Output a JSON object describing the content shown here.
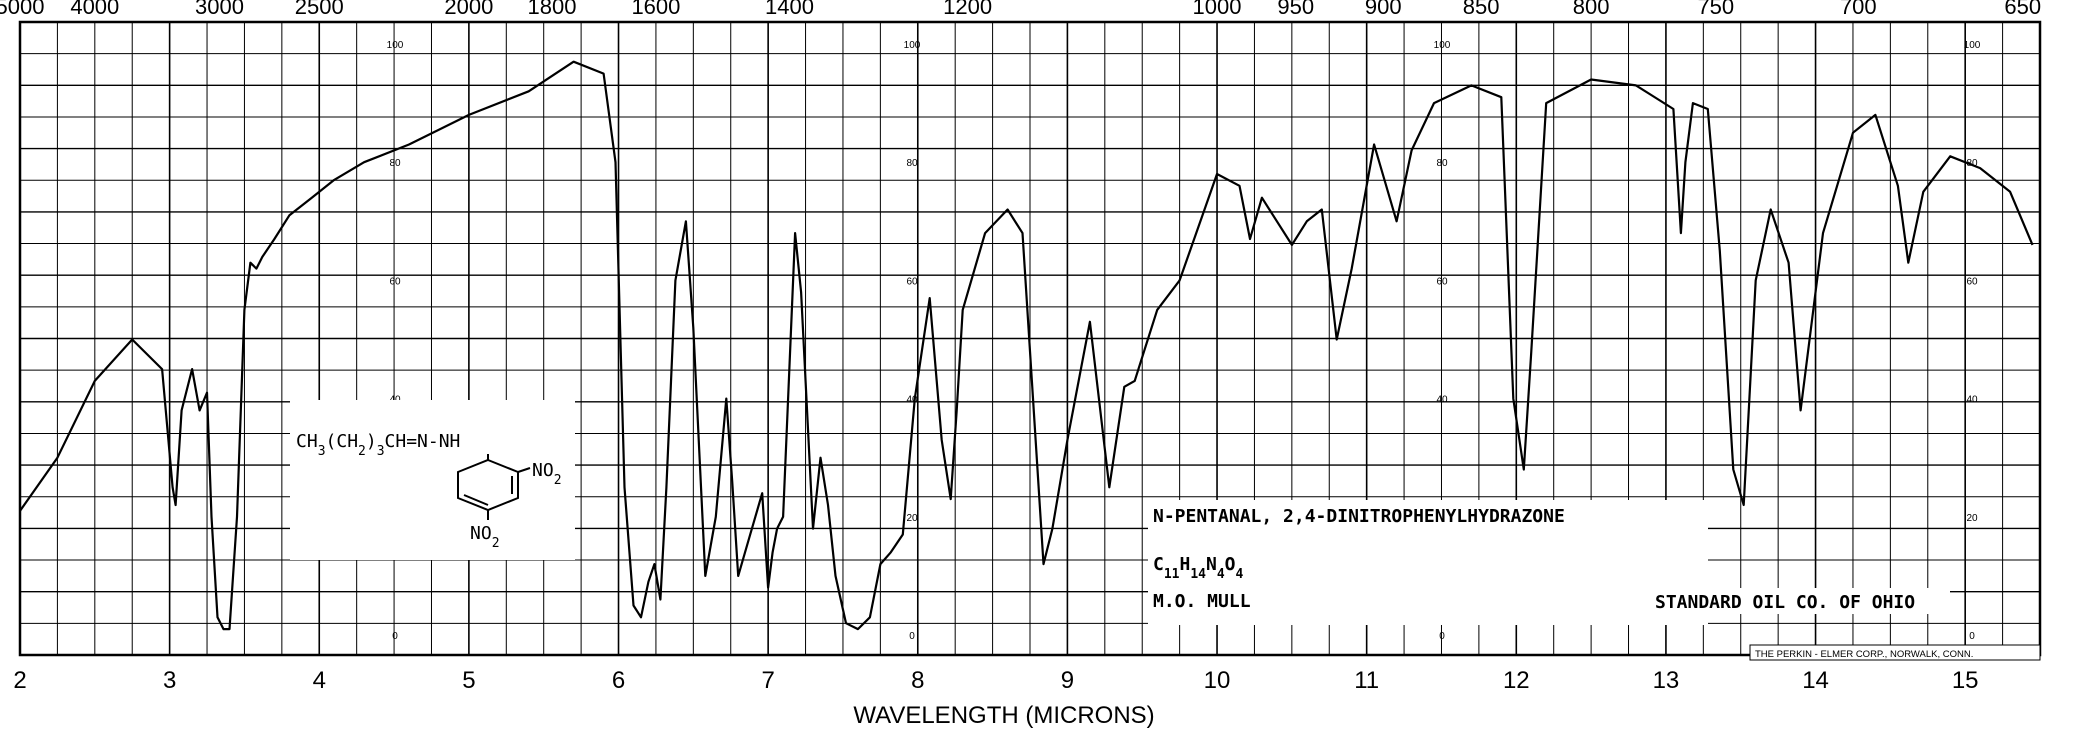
{
  "chart_data": {
    "type": "line",
    "title": "N-PENTANAL, 2,4-DINITROPHENYLHYDRAZONE",
    "xlabel": "WAVELENGTH (MICRONS)",
    "ylabel": "",
    "xlim": [
      2,
      15.5
    ],
    "ylim": [
      0,
      100
    ],
    "x_ticks": [
      "2",
      "3",
      "4",
      "5",
      "6",
      "7",
      "8",
      "9",
      "10",
      "11",
      "12",
      "13",
      "14",
      "15"
    ],
    "wavenumber_ticks": [
      "5000",
      "4000",
      "3000",
      "2500",
      "2000",
      "1800",
      "1600",
      "1400",
      "1200",
      "1000",
      "950",
      "900",
      "850",
      "800",
      "750",
      "700",
      "650"
    ],
    "y_ticks": [
      "0",
      "20",
      "40",
      "60",
      "80",
      "100"
    ],
    "grid": true,
    "series": [
      {
        "name": "",
        "x": [
          2.0,
          2.25,
          2.5,
          2.75,
          2.95,
          3.02,
          3.04,
          3.08,
          3.15,
          3.2,
          3.25,
          3.28,
          3.32,
          3.36,
          3.4,
          3.45,
          3.5,
          3.54,
          3.58,
          3.62,
          3.7,
          3.8,
          3.95,
          4.1,
          4.3,
          4.6,
          5.0,
          5.4,
          5.7,
          5.9,
          5.98,
          6.04,
          6.1,
          6.15,
          6.2,
          6.24,
          6.28,
          6.32,
          6.38,
          6.45,
          6.5,
          6.58,
          6.65,
          6.72,
          6.76,
          6.8,
          6.88,
          6.96,
          7.0,
          7.03,
          7.06,
          7.1,
          7.18,
          7.22,
          7.3,
          7.35,
          7.4,
          7.45,
          7.52,
          7.6,
          7.68,
          7.75,
          7.82,
          7.9,
          7.98,
          8.08,
          8.16,
          8.22,
          8.26,
          8.3,
          8.45,
          8.6,
          8.7,
          8.8,
          8.84,
          8.9,
          9.0,
          9.15,
          9.28,
          9.38,
          9.45,
          9.5,
          9.6,
          9.75,
          10.0,
          10.15,
          10.22,
          10.3,
          10.4,
          10.5,
          10.6,
          10.7,
          10.8,
          10.9,
          11.05,
          11.2,
          11.3,
          11.45,
          11.7,
          11.9,
          11.98,
          12.05,
          12.1,
          12.2,
          12.5,
          12.8,
          13.05,
          13.1,
          13.13,
          13.18,
          13.28,
          13.36,
          13.45,
          13.52,
          13.6,
          13.7,
          13.82,
          13.9,
          14.05,
          14.25,
          14.4,
          14.55,
          14.62,
          14.72,
          14.9,
          15.1,
          15.3,
          15.45
        ],
        "y": [
          21,
          30,
          43,
          50,
          45,
          25,
          22,
          38,
          45,
          38,
          41,
          20,
          3,
          1,
          1,
          20,
          55,
          63,
          62,
          64,
          67,
          71,
          74,
          77,
          80,
          83,
          88,
          92,
          97,
          95,
          80,
          25,
          5,
          3,
          9,
          12,
          6,
          25,
          60,
          70,
          52,
          10,
          20,
          40,
          26,
          10,
          17,
          24,
          8,
          14,
          18,
          20,
          68,
          58,
          18,
          30,
          22,
          10,
          2,
          1,
          3,
          12,
          14,
          17,
          40,
          57,
          33,
          23,
          38,
          55,
          68,
          72,
          68,
          28,
          12,
          18,
          33,
          53,
          25,
          42,
          43,
          47,
          55,
          60,
          78,
          76,
          67,
          74,
          70,
          66,
          70,
          72,
          50,
          62,
          83,
          70,
          82,
          90,
          93,
          91,
          40,
          28,
          48,
          90,
          94,
          93,
          89,
          68,
          80,
          90,
          89,
          65,
          28,
          22,
          60,
          72,
          63,
          38,
          68,
          85,
          88,
          76,
          63,
          75,
          81,
          79,
          75,
          66
        ]
      }
    ],
    "annotations": {
      "compound_name": "N-PENTANAL, 2,4-DINITROPHENYLHYDRAZONE",
      "formula": "C11H14N4O4",
      "sample_phase": "M.O. MULL",
      "source": "STANDARD OIL CO. OF OHIO",
      "maker": "THE PERKIN - ELMER CORP., NORWALK, CONN.",
      "structure_chain": "CH3(CH2)3CH=N-NH",
      "structure_sub_top": "NO2",
      "structure_sub_bottom": "NO2"
    }
  },
  "colors": {
    "ink": "#000000",
    "paper": "#ffffff"
  }
}
